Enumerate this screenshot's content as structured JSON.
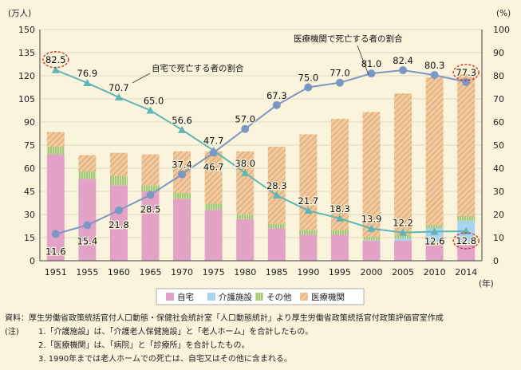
{
  "chart_data": {
    "type": "bar",
    "categories": [
      "1951",
      "1955",
      "1960",
      "1965",
      "1970",
      "1975",
      "1980",
      "1985",
      "1990",
      "1995",
      "2000",
      "2005",
      "2010",
      "2014"
    ],
    "left_axis": {
      "unit": "(万人)",
      "ticks": [
        "0",
        "15",
        "30",
        "45",
        "60",
        "75",
        "90",
        "105",
        "120",
        "135",
        "150"
      ],
      "ylim": [
        0,
        150
      ]
    },
    "right_axis": {
      "unit": "(%)",
      "ticks": [
        "0",
        "10",
        "20",
        "30",
        "40",
        "50",
        "60",
        "70",
        "80",
        "90",
        "100"
      ],
      "ylim": [
        0,
        100
      ]
    },
    "x_unit": "(年)",
    "bar_series": [
      {
        "name": "自宅",
        "color": "#e2a3c7",
        "values": [
          69,
          53,
          49,
          45,
          40,
          33,
          27,
          21,
          17,
          17,
          13,
          13,
          12,
          12
        ]
      },
      {
        "name": "介護施設",
        "color": "#a9d4f0",
        "values": [
          0,
          0,
          0,
          0,
          0,
          0,
          0,
          0,
          0,
          0,
          0.5,
          1.5,
          9,
          14
        ]
      },
      {
        "name": "その他",
        "color": "#b7d48e",
        "values": [
          5,
          5,
          6,
          4,
          4,
          4,
          3,
          3,
          3,
          3,
          2,
          2,
          2,
          3
        ]
      },
      {
        "name": "医療機関",
        "color": "#efc9a0",
        "values": [
          9.5,
          10.5,
          15,
          20,
          27,
          34,
          41,
          50,
          62,
          72,
          81,
          92,
          96,
          92
        ]
      }
    ],
    "line_series": [
      {
        "name": "自宅で死亡する者の割合",
        "color": "#5fb5b5",
        "values": [
          82.5,
          76.9,
          70.7,
          65.0,
          56.6,
          47.7,
          38.0,
          28.3,
          21.7,
          18.3,
          13.9,
          12.2,
          12.6,
          12.8
        ],
        "labels": [
          "82.5",
          "76.9",
          "70.7",
          "65.0",
          "56.6",
          "47.7",
          "38.0",
          "28.3",
          "21.7",
          "18.3",
          "13.9",
          "12.2",
          "12.6",
          "12.8"
        ]
      },
      {
        "name": "医療機関で死亡する者の割合",
        "color": "#7b97c4",
        "values": [
          11.6,
          15.4,
          21.8,
          28.5,
          37.4,
          46.7,
          57.0,
          67.3,
          75.0,
          77.0,
          81.0,
          82.4,
          80.3,
          77.3
        ],
        "labels": [
          "11.6",
          "15.4",
          "21.8",
          "28.5",
          "37.4",
          "46.7",
          "57.0",
          "67.3",
          "75.0",
          "77.0",
          "81.0",
          "82.4",
          "80.3",
          "77.3"
        ]
      }
    ],
    "highlighted": [
      "82.5",
      "77.3",
      "12.8"
    ],
    "legend": [
      "自宅",
      "介護施設",
      "その他",
      "医療機関"
    ]
  },
  "notes": {
    "source_label": "資料：",
    "source_text": "厚生労働省政策統括官付人口動態・保健社会統計室「人口動態統計」より厚生労働省政策統括官付政策評価官室作成",
    "note_label": "(注)",
    "items": [
      "1.「介護施設」は、「介護老人保健施設」と「老人ホーム」を合計したもの。",
      "2.「医療機関」は、「病院」と「診療所」を合計したもの。",
      "3. 1990年までは老人ホームでの死亡は、自宅又はその他に含まれる。"
    ]
  }
}
